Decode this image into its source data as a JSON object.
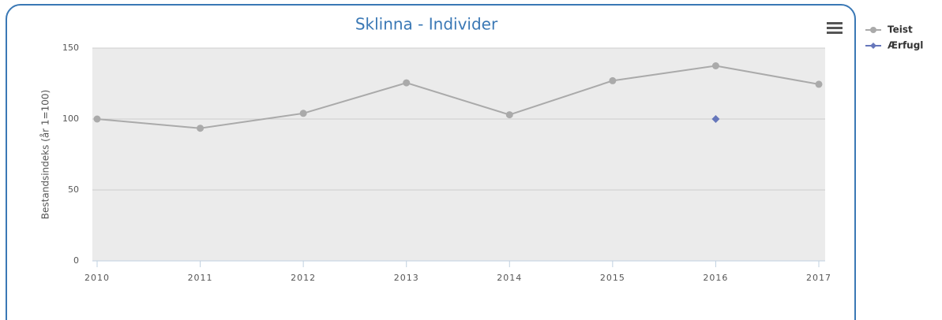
{
  "chart_data": {
    "type": "line",
    "title": "Sklinna - Individer",
    "y_label": "Bestandsindeks (år 1=100)",
    "x": [
      2010,
      2011,
      2012,
      2013,
      2014,
      2015,
      2016,
      2017
    ],
    "xlim": [
      2010,
      2017
    ],
    "xticks": [
      2010,
      2011,
      2012,
      2013,
      2014,
      2015,
      2016,
      2017
    ],
    "ylim": [
      0,
      150
    ],
    "yticks": [
      0,
      50,
      100,
      150
    ],
    "grid": true,
    "legend": "right",
    "series": [
      {
        "name": "Teist",
        "color": "#aaaaaa",
        "marker": "circle",
        "values": [
          100,
          93.5,
          104,
          125.5,
          103,
          127,
          137.5,
          124.5
        ]
      },
      {
        "name": "Ærfugl",
        "color": "#6677bb",
        "marker": "diamond",
        "values": [
          null,
          null,
          null,
          null,
          null,
          null,
          100,
          null
        ]
      }
    ]
  }
}
